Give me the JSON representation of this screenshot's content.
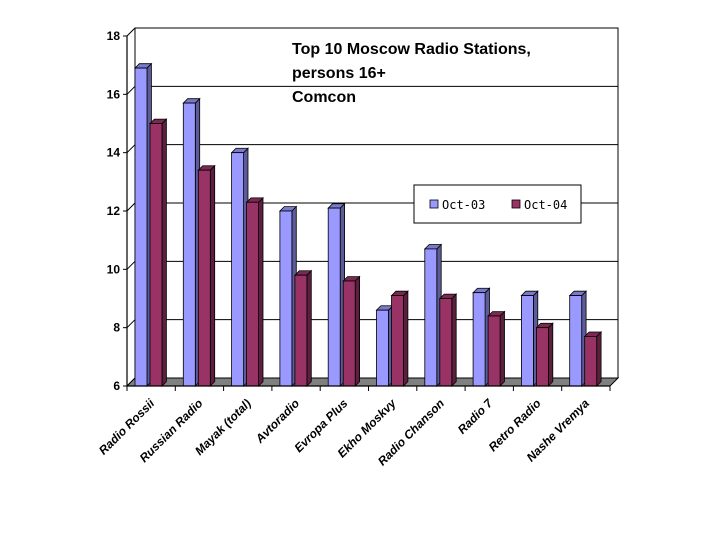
{
  "chart_data": {
    "type": "bar",
    "title_lines": [
      "Top 10 Moscow Radio Stations,",
      "persons 16+",
      "Comcon"
    ],
    "categories": [
      "Radio Rossii",
      "Russian Radio",
      "Mayak (total)",
      "Avtoradio",
      "Evropa Plus",
      "Ekho Moskvy",
      "Radio Chanson",
      "Radio 7",
      "Retro Radio",
      "Nashe Vremya"
    ],
    "series": [
      {
        "name": "Oct-03",
        "values": [
          16.9,
          15.7,
          14.0,
          12.0,
          12.1,
          8.6,
          10.7,
          9.2,
          9.1,
          9.1
        ]
      },
      {
        "name": "Oct-04",
        "values": [
          15.0,
          13.4,
          12.3,
          9.8,
          9.6,
          9.1,
          9.0,
          8.4,
          8.0,
          7.7
        ]
      }
    ],
    "colors": {
      "Oct-03": "#9999ff",
      "Oct-04": "#993366",
      "floor": "#808080"
    },
    "ylim": [
      6,
      18
    ],
    "yticks": [
      "6",
      "8",
      "10",
      "12",
      "14",
      "16",
      "18"
    ],
    "grid": true,
    "legend_position": "right-middle",
    "xlabel": "",
    "ylabel": ""
  }
}
